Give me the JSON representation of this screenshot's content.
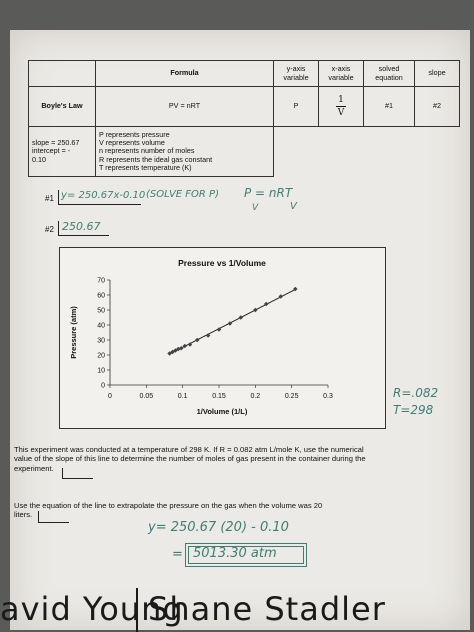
{
  "table": {
    "headers": {
      "formula": "Formula",
      "y_axis": "y-axis variable",
      "x_axis": "x-axis variable",
      "solved": "solved equation",
      "slope": "slope"
    },
    "row": {
      "law": "Boyle's Law",
      "formula": "PV = nRT",
      "y_var": "P",
      "x_num": "1",
      "x_den": "V",
      "solved": "#1",
      "slope": "#2"
    },
    "fit": {
      "slope": "slope = 250.67",
      "intercept": "intercept = -",
      "intercept_val": "0.10"
    },
    "definitions": [
      "P represents pressure",
      "V represents volume",
      "n represents number of moles",
      "R represents the ideal gas constant",
      "T represents temperature (K)"
    ]
  },
  "answers": {
    "a1_label": "#1",
    "a1_text": "y= 250.67x-0.10",
    "a1_note": "(SOLVE FOR P)",
    "a1_eq": "P = nRT",
    "a1_eq_den": "V",
    "a1_v": "V",
    "a2_label": "#2",
    "a2_text": "250.67"
  },
  "chart_data": {
    "type": "scatter",
    "title": "Pressure vs 1/Volume",
    "xlabel": "1/Volume (1/L)",
    "ylabel": "Pressure (atm)",
    "xlim": [
      0,
      0.3
    ],
    "ylim": [
      0,
      70
    ],
    "xticks": [
      "0",
      "0.05",
      "0.1",
      "0.15",
      "0.2",
      "0.25",
      "0.3"
    ],
    "yticks": [
      "0",
      "10",
      "20",
      "30",
      "40",
      "50",
      "60",
      "70"
    ],
    "grid": false,
    "trendline": true,
    "x": [
      0.082,
      0.086,
      0.09,
      0.094,
      0.098,
      0.103,
      0.11,
      0.12,
      0.135,
      0.15,
      0.165,
      0.18,
      0.2,
      0.215,
      0.235,
      0.255
    ],
    "y": [
      21,
      22,
      23,
      24,
      24.5,
      26,
      27,
      30,
      33,
      37,
      41,
      45,
      50,
      54,
      59,
      64
    ]
  },
  "side_notes": {
    "r": "R=.082",
    "t": "T=298"
  },
  "questions": {
    "q1_a": "This experiment was conducted at a temperature of 298 K. If R = 0.082 atm L/mole K, use the numerical",
    "q1_b": "value of the slope of this line to determine the number of moles of gas present in the container during the",
    "q1_c": "experiment.",
    "q2_a": "Use the equation of the line to extrapolate the pressure on the gas when the volume was 20",
    "q2_b": "liters.",
    "work_1": "y= 250.67 (20) - 0.10",
    "work_eq": "=",
    "work_2": "5013.30 atm"
  },
  "footer": {
    "left": "avid Young",
    "right": "Shane Stadler"
  },
  "colors": {
    "ink": "#3f7e72",
    "paper": "#eceae6"
  }
}
